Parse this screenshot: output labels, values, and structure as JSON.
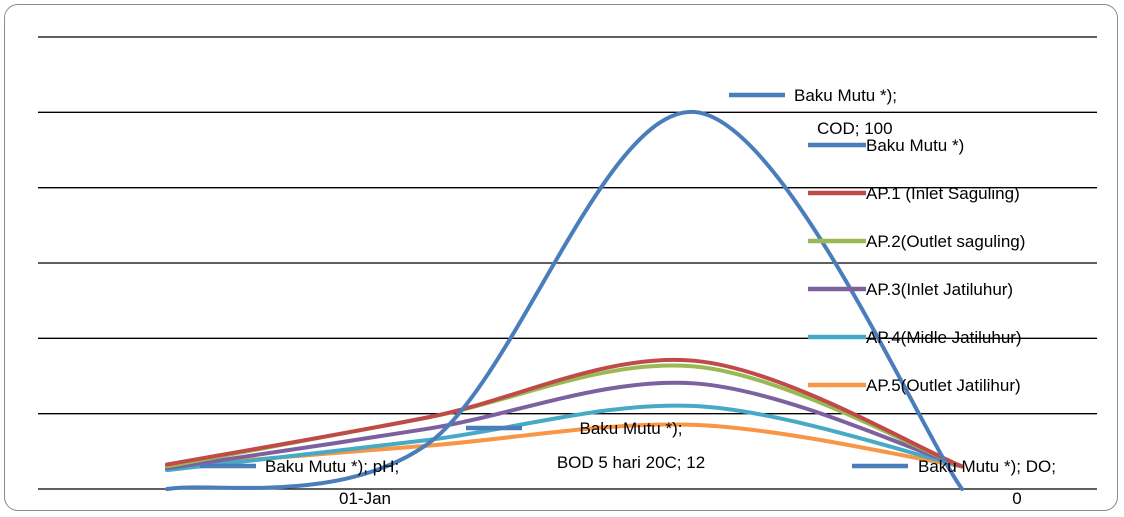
{
  "chart_data": {
    "type": "line",
    "smooth": true,
    "categories": [
      "pH",
      "BOD 5 hari 20C",
      "COD",
      "DO"
    ],
    "ylim": [
      0,
      100
    ],
    "grid": true,
    "legend_position": "right",
    "colors": {
      "Baku Mutu *)": "#4a7ebb",
      "AP.1 (Inlet Saguling)": "#be4b48",
      "AP.2(Outlet saguling)": "#98b954",
      "AP.3(Inlet Jatiluhur)": "#7d60a0",
      "AP.4(Midle Jatiluhur)": "#46aac5",
      "AP.5(Outlet Jatilihur)": "#f79646"
    },
    "series": [
      {
        "name": "Baku Mutu *)",
        "values": [
          0,
          12,
          100,
          0
        ]
      },
      {
        "name": "AP.1 (Inlet Saguling)",
        "values": [
          6.5,
          19,
          34,
          6
        ]
      },
      {
        "name": "AP.2(Outlet saguling)",
        "values": [
          6,
          19,
          32.5,
          6
        ]
      },
      {
        "name": "AP.3(Inlet Jatiluhur)",
        "values": [
          5.5,
          16,
          28,
          6
        ]
      },
      {
        "name": "AP.4(Midle Jatiluhur)",
        "values": [
          5,
          13,
          22,
          6
        ]
      },
      {
        "name": "AP.5(Outlet Jatilihur)",
        "values": [
          6,
          11.5,
          17,
          6
        ]
      }
    ],
    "data_labels": [
      {
        "line1": "Baku Mutu *); pH;",
        "line2": "01-Jan"
      },
      {
        "line1": "Baku Mutu *);",
        "line2": "BOD 5 hari 20C; 12"
      },
      {
        "line1": "Baku Mutu *);",
        "line2": "COD; 100"
      },
      {
        "line1": "Baku Mutu *); DO;",
        "line2": "0"
      }
    ]
  }
}
